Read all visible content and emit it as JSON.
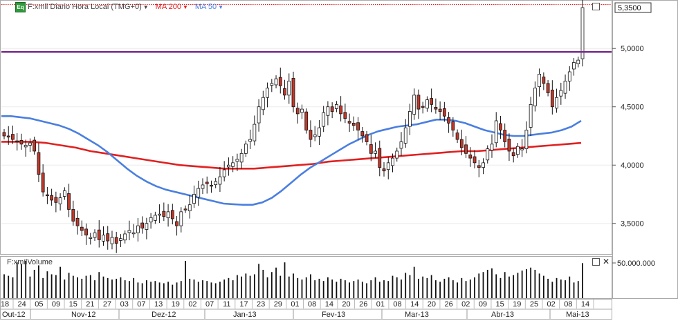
{
  "legend": {
    "symbol": "F:xmil Diario Hora Local (TMG+0)",
    "ma200": "MA 200",
    "ma50": "MA 50"
  },
  "volume_panel": {
    "label": "F:xmilVolume",
    "scale_label": "50.000.000"
  },
  "price_axis": {
    "last_price": "5,3500",
    "ticks": [
      "5,0000",
      "4,5000",
      "4,0000",
      "3,5000"
    ]
  },
  "colors": {
    "up": "#ffffff",
    "down": "#c0392b",
    "ma200": "#e02020",
    "ma50": "#4a7fe0",
    "resistance": "#7b2d8e",
    "top_dotted": "#e02020"
  },
  "chart_data": {
    "type": "candlestick",
    "price_range": [
      3.25,
      5.38
    ],
    "resistance_level": 4.97,
    "last_price": 5.35,
    "x_day_labels": [
      "18",
      "24",
      "05",
      "09",
      "15",
      "21",
      "27",
      "03",
      "07",
      "13",
      "19",
      "02",
      "07",
      "11",
      "17",
      "23",
      "29",
      "01",
      "08",
      "14",
      "20",
      "26",
      "01",
      "08",
      "14",
      "20",
      "26",
      "02",
      "09",
      "15",
      "19",
      "25",
      "02",
      "08",
      "14"
    ],
    "x_month_labels": [
      "Out-12",
      "Nov-12",
      "Dez-12",
      "Jan-13",
      "Fev-13",
      "Mar-13",
      "Abr-13",
      "Mai-13"
    ],
    "close_series": [
      4.25,
      4.24,
      4.22,
      4.2,
      4.18,
      4.17,
      4.19,
      4.12,
      3.92,
      3.77,
      3.74,
      3.7,
      3.68,
      3.72,
      3.78,
      3.62,
      3.52,
      3.48,
      3.44,
      3.4,
      3.38,
      3.42,
      3.36,
      3.4,
      3.35,
      3.38,
      3.33,
      3.37,
      3.41,
      3.44,
      3.42,
      3.48,
      3.46,
      3.5,
      3.55,
      3.57,
      3.58,
      3.56,
      3.6,
      3.54,
      3.48,
      3.6,
      3.62,
      3.66,
      3.75,
      3.8,
      3.83,
      3.84,
      3.82,
      3.86,
      3.9,
      3.96,
      4.0,
      4.02,
      4.05,
      4.1,
      4.18,
      4.22,
      4.35,
      4.5,
      4.58,
      4.66,
      4.7,
      4.74,
      4.68,
      4.6,
      4.72,
      4.5,
      4.44,
      4.48,
      4.3,
      4.22,
      4.26,
      4.32,
      4.45,
      4.5,
      4.46,
      4.52,
      4.44,
      4.4,
      4.36,
      4.34,
      4.3,
      4.25,
      4.2,
      4.1,
      4.12,
      3.98,
      3.95,
      4.02,
      4.06,
      4.12,
      4.2,
      4.32,
      4.46,
      4.6,
      4.48,
      4.5,
      4.56,
      4.52,
      4.48,
      4.46,
      4.42,
      4.36,
      4.3,
      4.22,
      4.15,
      4.1,
      4.06,
      4.02,
      3.98,
      4.02,
      4.14,
      4.18,
      4.38,
      4.3,
      4.2,
      4.12,
      4.08,
      4.16,
      4.14,
      4.3,
      4.52,
      4.66,
      4.78,
      4.7,
      4.62,
      4.5,
      4.58,
      4.64,
      4.72,
      4.8,
      4.88,
      4.9,
      5.35
    ],
    "ma50": [
      4.42,
      4.42,
      4.41,
      4.4,
      4.38,
      4.36,
      4.34,
      4.31,
      4.27,
      4.22,
      4.17,
      4.11,
      4.04,
      3.97,
      3.91,
      3.86,
      3.82,
      3.79,
      3.77,
      3.75,
      3.73,
      3.71,
      3.69,
      3.67,
      3.665,
      3.66,
      3.66,
      3.68,
      3.72,
      3.78,
      3.85,
      3.92,
      3.98,
      4.03,
      4.08,
      4.13,
      4.18,
      4.22,
      4.26,
      4.29,
      4.31,
      4.33,
      4.34,
      4.35,
      4.37,
      4.39,
      4.39,
      4.38,
      4.36,
      4.33,
      4.3,
      4.28,
      4.26,
      4.25,
      4.25,
      4.26,
      4.27,
      4.28,
      4.3,
      4.33,
      4.38
    ],
    "ma200": [
      4.2,
      4.2,
      4.2,
      4.19,
      4.17,
      4.15,
      4.12,
      4.1,
      4.08,
      4.06,
      4.04,
      4.02,
      4.0,
      3.99,
      3.98,
      3.97,
      3.97,
      3.97,
      3.98,
      3.99,
      4.0,
      4.01,
      4.03,
      4.04,
      4.05,
      4.06,
      4.07,
      4.08,
      4.09,
      4.1,
      4.11,
      4.12,
      4.12,
      4.13,
      4.14,
      4.15,
      4.16,
      4.17,
      4.18,
      4.19
    ],
    "volume_max": 50000000,
    "volume_series": [
      32000000,
      30000000,
      28000000,
      48000000,
      46000000,
      50000000,
      29000000,
      38000000,
      44000000,
      27000000,
      36000000,
      32000000,
      31000000,
      42000000,
      25000000,
      34000000,
      30000000,
      28000000,
      26000000,
      30000000,
      31000000,
      24000000,
      35000000,
      29000000,
      27000000,
      25000000,
      26000000,
      28000000,
      24000000,
      23000000,
      27000000,
      21000000,
      20000000,
      24000000,
      22000000,
      23000000,
      21000000,
      20000000,
      22000000,
      18000000,
      21000000,
      23000000,
      50000000,
      26000000,
      25000000,
      22000000,
      24000000,
      23000000,
      21000000,
      20000000,
      22000000,
      25000000,
      27000000,
      24000000,
      31000000,
      29000000,
      33000000,
      30000000,
      32000000,
      46000000,
      38000000,
      28000000,
      35000000,
      41000000,
      30000000,
      48000000,
      29000000,
      33000000,
      27000000,
      25000000,
      28000000,
      32000000,
      24000000,
      26000000,
      23000000,
      28000000,
      25000000,
      22000000,
      26000000,
      24000000,
      21000000,
      23000000,
      25000000,
      22000000,
      20000000,
      24000000,
      28000000,
      22000000,
      24000000,
      23000000,
      30000000,
      28000000,
      25000000,
      34000000,
      31000000,
      42000000,
      26000000,
      29000000,
      27000000,
      31000000,
      24000000,
      22000000,
      26000000,
      28000000,
      24000000,
      21000000,
      27000000,
      23000000,
      25000000,
      28000000,
      33000000,
      35000000,
      38000000,
      40000000,
      32000000,
      27000000,
      35000000,
      29000000,
      31000000,
      34000000,
      37000000,
      39000000,
      41000000,
      38000000,
      33000000,
      30000000,
      26000000,
      22000000,
      27000000,
      25000000,
      24000000,
      29000000,
      21000000,
      23000000,
      47000000
    ]
  }
}
